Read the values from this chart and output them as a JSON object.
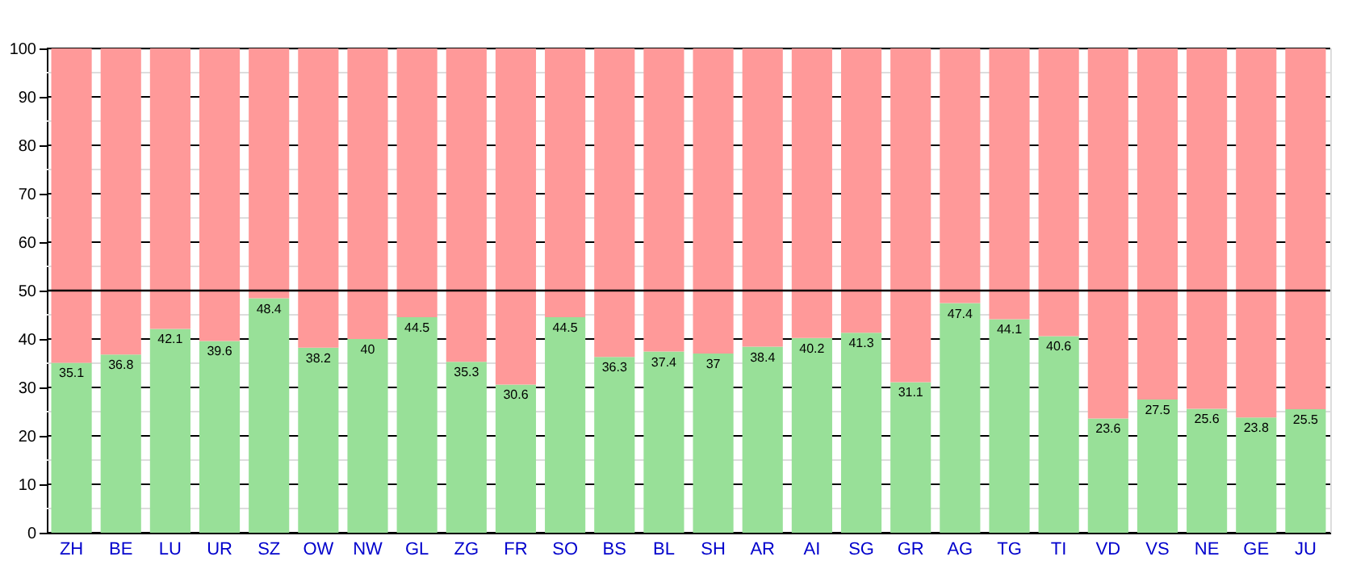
{
  "chart_data": {
    "type": "bar",
    "stacked": true,
    "categories": [
      "ZH",
      "BE",
      "LU",
      "UR",
      "SZ",
      "OW",
      "NW",
      "GL",
      "ZG",
      "FR",
      "SO",
      "BS",
      "BL",
      "SH",
      "AR",
      "AI",
      "SG",
      "GR",
      "AG",
      "TG",
      "TI",
      "VD",
      "VS",
      "NE",
      "GE",
      "JU"
    ],
    "series": [
      {
        "color": "#98e098",
        "values": [
          35.1,
          36.8,
          42.1,
          39.6,
          48.4,
          38.2,
          40,
          44.5,
          35.3,
          30.6,
          44.5,
          36.3,
          37.4,
          37,
          38.4,
          40.2,
          41.3,
          31.1,
          47.4,
          44.1,
          40.6,
          23.6,
          27.5,
          25.6,
          23.8,
          25.5
        ],
        "value_labels": [
          "35.1",
          "36.8",
          "42.1",
          "39.6",
          "48.4",
          "38.2",
          "40",
          "44.5",
          "35.3",
          "30.6",
          "44.5",
          "36.3",
          "37.4",
          "37",
          "38.4",
          "40.2",
          "41.3",
          "31.1",
          "47.4",
          "44.1",
          "40.6",
          "23.6",
          "27.5",
          "25.6",
          "23.8",
          "25.5"
        ]
      },
      {
        "color": "#ff9999",
        "values": [
          64.9,
          63.2,
          57.9,
          60.4,
          51.6,
          61.8,
          60,
          55.5,
          64.7,
          69.4,
          55.5,
          63.7,
          62.6,
          63,
          61.6,
          59.8,
          58.7,
          68.9,
          52.6,
          55.9,
          59.4,
          76.4,
          72.5,
          74.4,
          76.2,
          74.5
        ]
      }
    ],
    "ylim": [
      0,
      100
    ],
    "yticks": [
      0,
      {
        "value": 5,
        "label": null
      },
      10,
      {
        "value": 15,
        "label": null
      },
      20,
      {
        "value": 25,
        "label": null
      },
      30,
      {
        "value": 35,
        "label": null
      },
      40,
      {
        "value": 45,
        "label": null
      },
      50,
      {
        "value": 55,
        "label": null
      },
      60,
      {
        "value": 65,
        "label": null
      },
      70,
      {
        "value": 75,
        "label": null
      },
      80,
      {
        "value": 85,
        "label": null
      },
      90,
      {
        "value": 95,
        "label": null
      },
      100
    ],
    "grid": true,
    "ref_lines": [
      {
        "axis": "y",
        "value": 50,
        "color": "#000000"
      }
    ]
  }
}
